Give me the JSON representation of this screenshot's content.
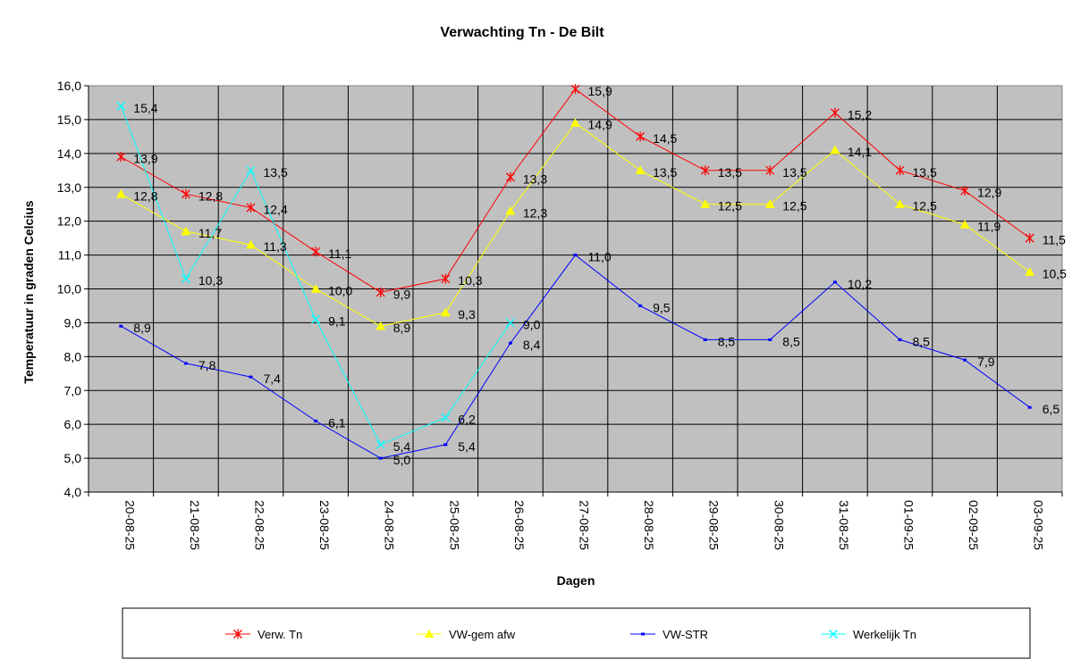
{
  "chart_data": {
    "type": "line",
    "title": "Verwachting Tn - De Bilt",
    "xlabel": "Dagen",
    "ylabel": "Temperatuur in graden Celcius",
    "ylim": [
      4.0,
      16.0
    ],
    "ytick_step": 1.0,
    "grid": true,
    "legend_position": "bottom",
    "categories": [
      "20-08-25",
      "21-08-25",
      "22-08-25",
      "23-08-25",
      "24-08-25",
      "25-08-25",
      "26-08-25",
      "27-08-25",
      "28-08-25",
      "29-08-25",
      "30-08-25",
      "31-08-25",
      "01-09-25",
      "02-09-25",
      "03-09-25"
    ],
    "series": [
      {
        "name": "Verw. Tn",
        "color": "#ff0000",
        "marker": "star",
        "values": [
          13.9,
          12.8,
          12.4,
          11.1,
          9.9,
          10.3,
          13.3,
          15.9,
          14.5,
          13.5,
          13.5,
          15.2,
          13.5,
          12.9,
          11.5
        ]
      },
      {
        "name": "VW-gem afw",
        "color": "#ffff00",
        "marker": "triangle",
        "values": [
          12.8,
          11.7,
          11.3,
          10.0,
          8.9,
          9.3,
          12.3,
          14.9,
          13.5,
          12.5,
          12.5,
          14.1,
          12.5,
          11.9,
          10.5
        ]
      },
      {
        "name": "VW-STR",
        "color": "#0000ff",
        "marker": "dash",
        "values": [
          8.9,
          7.8,
          7.4,
          6.1,
          5.0,
          5.4,
          8.4,
          11.0,
          9.5,
          8.5,
          8.5,
          10.2,
          8.5,
          7.9,
          6.5
        ]
      },
      {
        "name": "Werkelijk Tn",
        "color": "#00ffff",
        "marker": "x",
        "values": [
          15.4,
          10.3,
          13.5,
          9.1,
          5.4,
          6.2,
          9.0,
          null,
          null,
          null,
          null,
          null,
          null,
          null,
          null
        ]
      }
    ]
  }
}
